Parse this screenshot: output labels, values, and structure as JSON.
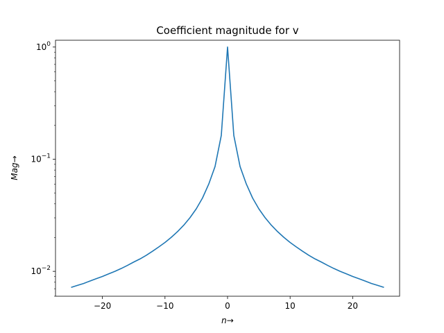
{
  "chart_data": {
    "type": "line",
    "title": "Coefficient magnitude for v",
    "xlabel": "n→",
    "ylabel": "Mag→",
    "yscale": "log",
    "xlim": [
      -27.5,
      27.5
    ],
    "ylim": [
      0.006,
      1.15
    ],
    "grid": false,
    "legend": "none",
    "line_color": "#1f77b4",
    "x_ticks": [
      -20,
      -10,
      0,
      10,
      20
    ],
    "x_tick_labels": [
      "−20",
      "−10",
      "0",
      "10",
      "20"
    ],
    "y_major_ticks": [
      0.01,
      0.1,
      1
    ],
    "y_tick_labels": [
      {
        "base": "10",
        "exp": "−2"
      },
      {
        "base": "10",
        "exp": "−1"
      },
      {
        "base": "10",
        "exp": "0"
      }
    ],
    "y_minor_ticks": [
      0.006,
      0.007,
      0.008,
      0.009,
      0.02,
      0.03,
      0.04,
      0.05,
      0.06,
      0.07,
      0.08,
      0.09,
      0.2,
      0.3,
      0.4,
      0.5,
      0.6,
      0.7,
      0.8,
      0.9
    ],
    "series": [
      {
        "x": [
          -25,
          -24,
          -23,
          -22,
          -21,
          -20,
          -19,
          -18,
          -17,
          -16,
          -15,
          -14,
          -13,
          -12,
          -11,
          -10,
          -9,
          -8,
          -7,
          -6,
          -5,
          -4,
          -3,
          -2,
          -1,
          0,
          1,
          2,
          3,
          4,
          5,
          6,
          7,
          8,
          9,
          10,
          11,
          12,
          13,
          14,
          15,
          16,
          17,
          18,
          19,
          20,
          21,
          22,
          23,
          24,
          25
        ],
        "y": [
          0.0072,
          0.0075,
          0.0078,
          0.0082,
          0.0086,
          0.009,
          0.0095,
          0.01,
          0.0106,
          0.0113,
          0.0121,
          0.0129,
          0.0139,
          0.0151,
          0.0165,
          0.0181,
          0.0201,
          0.0226,
          0.0258,
          0.0301,
          0.0361,
          0.0451,
          0.0601,
          0.086,
          0.163,
          1.0,
          0.163,
          0.086,
          0.0601,
          0.0451,
          0.0361,
          0.0301,
          0.0258,
          0.0226,
          0.0201,
          0.0181,
          0.0165,
          0.0151,
          0.0139,
          0.0129,
          0.0121,
          0.0113,
          0.0106,
          0.01,
          0.0095,
          0.009,
          0.0086,
          0.0082,
          0.0078,
          0.0075,
          0.0072
        ]
      }
    ]
  }
}
